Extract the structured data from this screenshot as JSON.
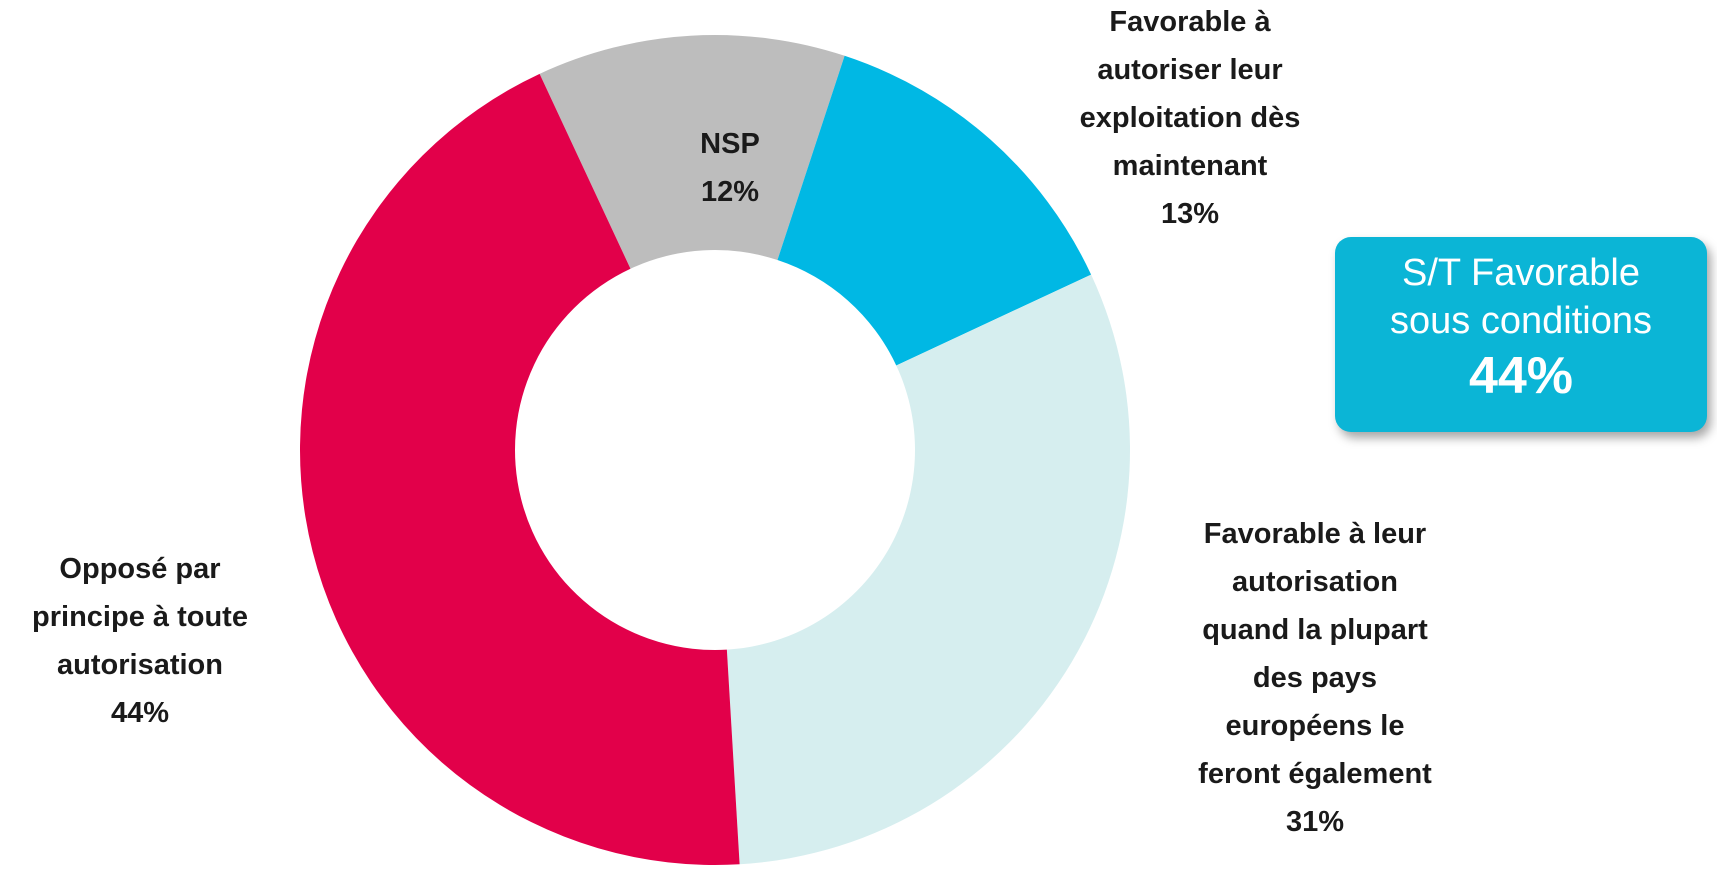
{
  "chart_data": {
    "type": "pie",
    "style": "donut",
    "slices": [
      {
        "label": "NSP",
        "value": 12,
        "value_label": "12%",
        "color": "#bdbdbd"
      },
      {
        "label": "Favorable à autoriser leur exploitation dès maintenant",
        "value": 13,
        "value_label": "13%",
        "color": "#00b8e4"
      },
      {
        "label": "Favorable à leur autorisation quand la plupart des pays européens le feront également",
        "value": 31,
        "value_label": "31%",
        "color": "#d6eeef"
      },
      {
        "label": "Opposé par principe à toute autorisation",
        "value": 44,
        "value_label": "44%",
        "color": "#e2004a"
      }
    ],
    "start_angle_deg": -25,
    "direction": "clockwise"
  },
  "labels": {
    "nsp": {
      "name_lines": [
        "NSP"
      ],
      "pct": "12%"
    },
    "fav_now": {
      "name_lines": [
        "Favorable à",
        "autoriser leur",
        "exploitation dès",
        "maintenant"
      ],
      "pct": "13%"
    },
    "fav_eu": {
      "name_lines": [
        "Favorable à leur",
        "autorisation",
        "quand la plupart",
        "des pays",
        "européens le",
        "feront également"
      ],
      "pct": "31%"
    },
    "oppose": {
      "name_lines": [
        "Opposé par",
        "principe à toute",
        "autorisation"
      ],
      "pct": "44%"
    }
  },
  "callout": {
    "line1": "S/T Favorable",
    "line2": "sous conditions",
    "value": "44%",
    "color": "#0bb5d6"
  }
}
